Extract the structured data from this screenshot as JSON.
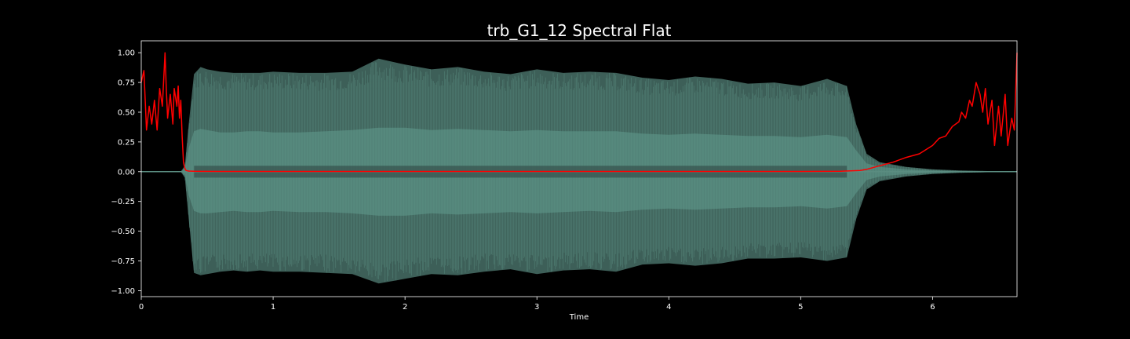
{
  "chart_data": {
    "type": "line",
    "title": "trb_G1_12 Spectral Flat",
    "xlabel": "Time",
    "ylabel": "",
    "xlim": [
      0,
      6.64
    ],
    "ylim": [
      -1.05,
      1.1
    ],
    "x_ticks": [
      0,
      1,
      2,
      3,
      4,
      5,
      6
    ],
    "x_tick_labels": [
      "0",
      "1",
      "2",
      "3",
      "4",
      "5",
      "6"
    ],
    "y_ticks": [
      1.0,
      0.75,
      0.5,
      0.25,
      0.0,
      -0.25,
      -0.5,
      -0.75,
      -1.0
    ],
    "y_tick_labels": [
      "1.00",
      "0.75",
      "0.50",
      "0.25",
      "0.00",
      "−0.25",
      "−0.50",
      "−0.75",
      "−1.00"
    ],
    "grid": false,
    "series": [
      {
        "kind": "waveform-envelope",
        "color": "#5a8c80",
        "envelope_t": [
          0.0,
          0.3,
          0.33,
          0.36,
          0.4,
          0.45,
          0.5,
          0.6,
          0.7,
          0.8,
          0.9,
          1.0,
          1.2,
          1.4,
          1.6,
          1.8,
          2.0,
          2.2,
          2.4,
          2.6,
          2.8,
          3.0,
          3.2,
          3.4,
          3.6,
          3.8,
          4.0,
          4.2,
          4.4,
          4.6,
          4.8,
          5.0,
          5.2,
          5.35,
          5.42,
          5.5,
          5.6,
          5.8,
          6.0,
          6.2,
          6.64
        ],
        "envelope_upper": [
          0.0,
          0.0,
          0.05,
          0.4,
          0.82,
          0.88,
          0.86,
          0.84,
          0.83,
          0.83,
          0.83,
          0.84,
          0.83,
          0.83,
          0.84,
          0.95,
          0.9,
          0.86,
          0.88,
          0.84,
          0.82,
          0.86,
          0.83,
          0.84,
          0.83,
          0.79,
          0.77,
          0.8,
          0.78,
          0.74,
          0.75,
          0.72,
          0.78,
          0.72,
          0.4,
          0.15,
          0.08,
          0.04,
          0.02,
          0.01,
          0.0
        ],
        "envelope_lower": [
          0.0,
          0.0,
          -0.05,
          -0.4,
          -0.85,
          -0.87,
          -0.86,
          -0.84,
          -0.83,
          -0.84,
          -0.83,
          -0.84,
          -0.84,
          -0.85,
          -0.86,
          -0.94,
          -0.9,
          -0.86,
          -0.87,
          -0.84,
          -0.82,
          -0.86,
          -0.83,
          -0.82,
          -0.84,
          -0.78,
          -0.77,
          -0.79,
          -0.77,
          -0.73,
          -0.73,
          -0.72,
          -0.75,
          -0.72,
          -0.4,
          -0.15,
          -0.08,
          -0.04,
          -0.02,
          -0.01,
          0.0
        ],
        "body_upper": [
          0.0,
          0.0,
          0.03,
          0.2,
          0.34,
          0.36,
          0.35,
          0.33,
          0.33,
          0.34,
          0.34,
          0.33,
          0.33,
          0.34,
          0.35,
          0.37,
          0.37,
          0.35,
          0.36,
          0.35,
          0.34,
          0.35,
          0.34,
          0.34,
          0.34,
          0.32,
          0.31,
          0.32,
          0.31,
          0.3,
          0.3,
          0.29,
          0.31,
          0.29,
          0.18,
          0.07,
          0.04,
          0.02,
          0.01,
          0.005,
          0.0
        ],
        "body_lower": [
          0.0,
          0.0,
          -0.03,
          -0.2,
          -0.33,
          -0.35,
          -0.35,
          -0.34,
          -0.33,
          -0.34,
          -0.34,
          -0.33,
          -0.34,
          -0.34,
          -0.35,
          -0.37,
          -0.37,
          -0.35,
          -0.36,
          -0.35,
          -0.34,
          -0.35,
          -0.34,
          -0.33,
          -0.34,
          -0.32,
          -0.31,
          -0.32,
          -0.31,
          -0.3,
          -0.3,
          -0.29,
          -0.31,
          -0.29,
          -0.18,
          -0.07,
          -0.04,
          -0.02,
          -0.01,
          -0.005,
          0.0
        ]
      },
      {
        "kind": "line",
        "color": "#ff0000",
        "x": [
          0.0,
          0.02,
          0.04,
          0.06,
          0.08,
          0.1,
          0.12,
          0.14,
          0.16,
          0.18,
          0.19,
          0.2,
          0.22,
          0.24,
          0.25,
          0.27,
          0.28,
          0.29,
          0.3,
          0.31,
          0.32,
          0.33,
          0.34,
          0.36,
          0.4,
          0.6,
          1.0,
          1.5,
          2.0,
          2.5,
          3.0,
          3.5,
          4.0,
          4.5,
          5.0,
          5.3,
          5.45,
          5.5,
          5.6,
          5.7,
          5.8,
          5.9,
          6.0,
          6.05,
          6.1,
          6.15,
          6.2,
          6.22,
          6.25,
          6.28,
          6.3,
          6.33,
          6.36,
          6.38,
          6.4,
          6.42,
          6.45,
          6.47,
          6.5,
          6.52,
          6.55,
          6.57,
          6.6,
          6.62,
          6.64
        ],
        "y": [
          0.75,
          0.85,
          0.35,
          0.55,
          0.4,
          0.6,
          0.35,
          0.7,
          0.55,
          1.0,
          0.7,
          0.45,
          0.65,
          0.4,
          0.7,
          0.55,
          0.72,
          0.45,
          0.6,
          0.3,
          0.08,
          0.03,
          0.01,
          0.005,
          0.003,
          0.002,
          0.002,
          0.002,
          0.002,
          0.002,
          0.002,
          0.002,
          0.002,
          0.002,
          0.002,
          0.003,
          0.01,
          0.02,
          0.05,
          0.08,
          0.12,
          0.15,
          0.22,
          0.28,
          0.3,
          0.38,
          0.42,
          0.5,
          0.45,
          0.6,
          0.55,
          0.75,
          0.65,
          0.5,
          0.7,
          0.4,
          0.6,
          0.22,
          0.55,
          0.3,
          0.65,
          0.22,
          0.45,
          0.35,
          1.0
        ]
      }
    ]
  }
}
